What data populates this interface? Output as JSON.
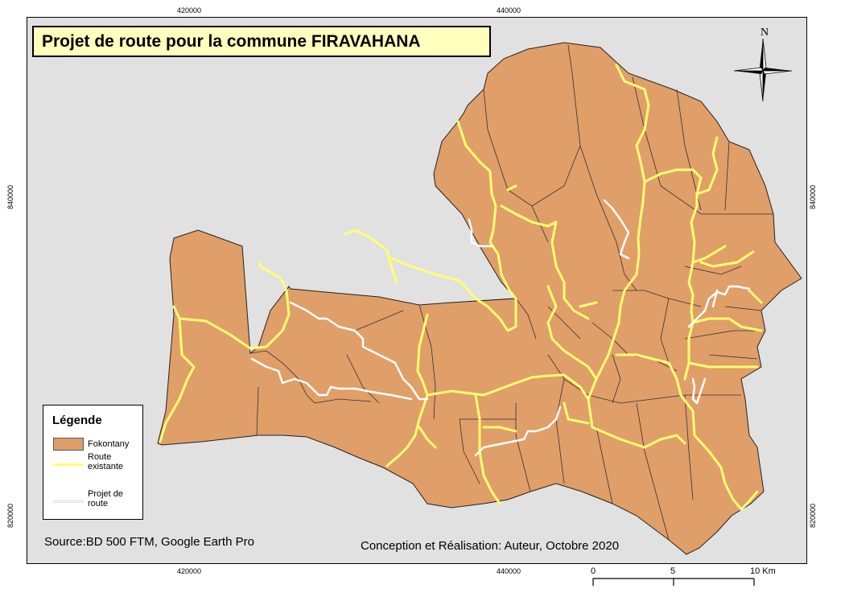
{
  "title": "Projet de route pour la commune FIRAVAHANA",
  "legend": {
    "title": "Légende",
    "items": [
      {
        "label": "Fokontany",
        "color": "#e09e68"
      },
      {
        "label": "Route existante",
        "color": "#ffff73"
      },
      {
        "label": "Projet de route",
        "color": "#ffffff"
      }
    ]
  },
  "coordinates": {
    "x_top": [
      "420000",
      "440000"
    ],
    "x_bottom": [
      "420000",
      "440000"
    ],
    "y_left": [
      "840000",
      "820000"
    ],
    "y_right": [
      "840000",
      "820000"
    ]
  },
  "source": "Source:BD 500 FTM, Google Earth Pro",
  "credit": "Conception et Réalisation: Auteur, Octobre 2020",
  "scale_bar": {
    "labels": [
      "0",
      "5",
      "10 Km"
    ]
  },
  "north_arrow": {
    "label": "N"
  },
  "colors": {
    "background": "#e1e1e1",
    "fokontany": "#e09e68",
    "existing_road": "#ffff73",
    "proposed_road": "#ffffff",
    "title_bg": "#ffffbe"
  }
}
